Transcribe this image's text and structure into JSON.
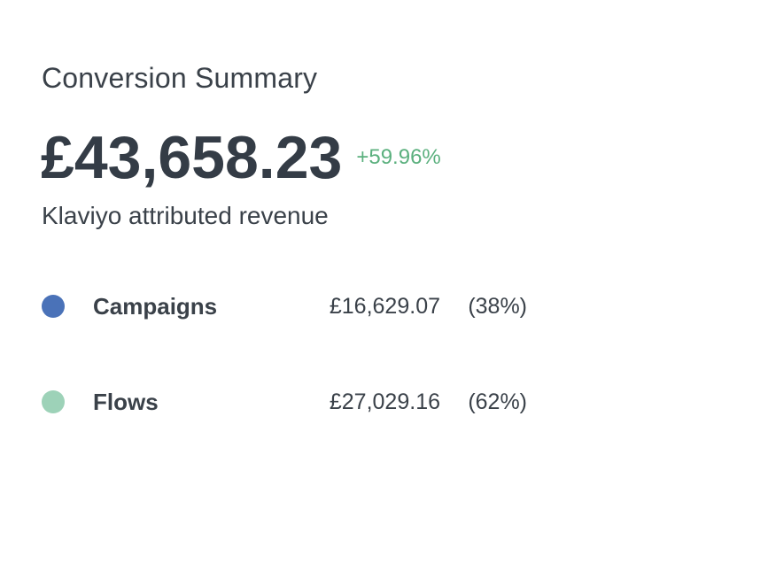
{
  "summary": {
    "title": "Conversion Summary",
    "total_revenue": "£43,658.23",
    "change": "+59.96%",
    "subtitle": "Klaviyo attributed revenue"
  },
  "breakdown": [
    {
      "label": "Campaigns",
      "value": "£16,629.07",
      "percent": "(38%)",
      "color": "#4a72b8"
    },
    {
      "label": "Flows",
      "value": "£27,029.16",
      "percent": "(62%)",
      "color": "#9dd2b8"
    }
  ],
  "colors": {
    "positive_change": "#5bb07e",
    "text": "#343c46"
  }
}
